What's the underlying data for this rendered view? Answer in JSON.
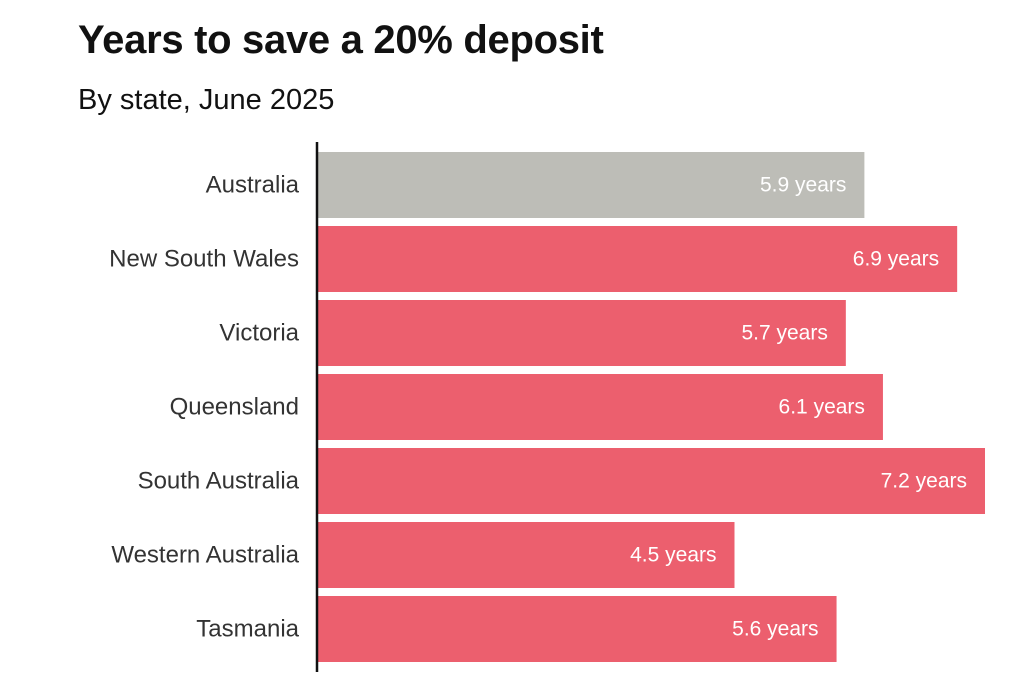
{
  "chart_data": {
    "type": "bar",
    "orientation": "horizontal",
    "title": "Years to save a 20% deposit",
    "subtitle": "By state, June 2025",
    "categories": [
      "Australia",
      "New South Wales",
      "Victoria",
      "Queensland",
      "South Australia",
      "Western Australia",
      "Tasmania"
    ],
    "values": [
      5.9,
      6.9,
      5.7,
      6.1,
      7.2,
      4.5,
      5.6
    ],
    "value_labels": [
      "5.9 years",
      "6.9 years",
      "5.7 years",
      "6.1 years",
      "7.2 years",
      "4.5 years",
      "5.6 years"
    ],
    "bar_colors": [
      "#bdbdb7",
      "#ec5f6e",
      "#ec5f6e",
      "#ec5f6e",
      "#ec5f6e",
      "#ec5f6e",
      "#ec5f6e"
    ],
    "xlim": [
      0,
      7.2
    ],
    "xlabel": "",
    "ylabel": "",
    "grid": false,
    "legend": "none"
  },
  "colors": {
    "highlight": "#ec5f6e",
    "national": "#bdbdb7",
    "axis": "#111111"
  }
}
